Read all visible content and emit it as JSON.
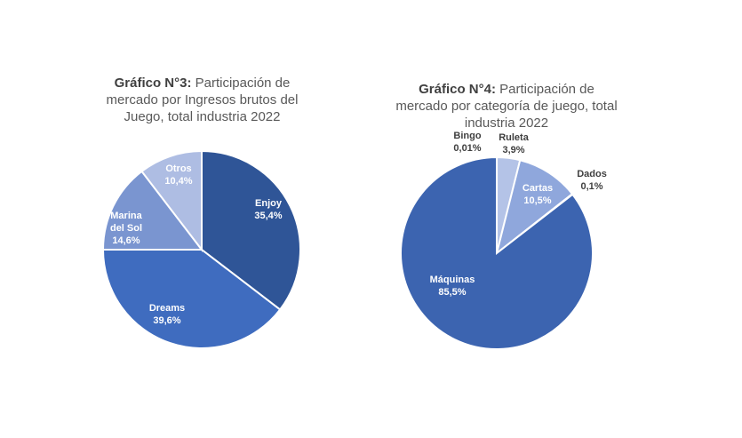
{
  "charts": {
    "c3": {
      "bold": "Gráfico N°3:",
      "rest": " Participación de mercado por Ingresos brutos del Juego, total industria 2022"
    },
    "c4": {
      "bold": "Gráfico N°4:",
      "rest": " Participación de mercado por categoría de juego, total industria 2022"
    }
  },
  "chart_data": [
    {
      "type": "pie",
      "title": "Gráfico N°3: Participación de mercado por Ingresos brutos del Juego, total industria 2022",
      "slices": [
        {
          "label": "Enjoy",
          "value": 35.4,
          "display": "35,4%",
          "color": "#2f5597"
        },
        {
          "label": "Dreams",
          "value": 39.6,
          "display": "39,6%",
          "color": "#3f6cbf"
        },
        {
          "label": "Marina del Sol",
          "value": 14.6,
          "display": "14,6%",
          "color": "#7a95d0"
        },
        {
          "label": "Otros",
          "value": 10.4,
          "display": "10,4%",
          "color": "#aebde3"
        }
      ]
    },
    {
      "type": "pie",
      "title": "Gráfico N°4: Participación de mercado por categoría de juego, total industria 2022",
      "slices": [
        {
          "label": "Bingo",
          "value": 0.01,
          "display": "0,01%",
          "color": "#c9d3ee"
        },
        {
          "label": "Ruleta",
          "value": 3.9,
          "display": "3,9%",
          "color": "#b4c3e7"
        },
        {
          "label": "Cartas",
          "value": 10.5,
          "display": "10,5%",
          "color": "#8fa7dc"
        },
        {
          "label": "Dados",
          "value": 0.1,
          "display": "0,1%",
          "color": "#6f8bcd"
        },
        {
          "label": "Máquinas",
          "value": 85.5,
          "display": "85,5%",
          "color": "#3c64b0"
        }
      ]
    }
  ]
}
